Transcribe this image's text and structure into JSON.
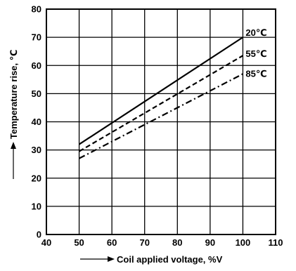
{
  "chart_data": {
    "type": "line",
    "xlabel": "Coil applied voltage, %V",
    "ylabel": "Temperature rise, ℃",
    "xlim": [
      40,
      110
    ],
    "ylim": [
      0,
      80
    ],
    "x_ticks": [
      "40",
      "50",
      "60",
      "70",
      "80",
      "90",
      "100",
      "110"
    ],
    "y_ticks": [
      "0",
      "10",
      "20",
      "30",
      "40",
      "50",
      "60",
      "70",
      "80"
    ],
    "grid": true,
    "series": [
      {
        "name": "20℃",
        "style": "solid",
        "x": [
          50,
          100
        ],
        "y": [
          32,
          70
        ]
      },
      {
        "name": "55℃",
        "style": "dashed",
        "x": [
          50,
          100
        ],
        "y": [
          29.5,
          63.5
        ]
      },
      {
        "name": "85℃",
        "style": "dashdot",
        "x": [
          50,
          100
        ],
        "y": [
          27,
          57
        ]
      }
    ]
  }
}
